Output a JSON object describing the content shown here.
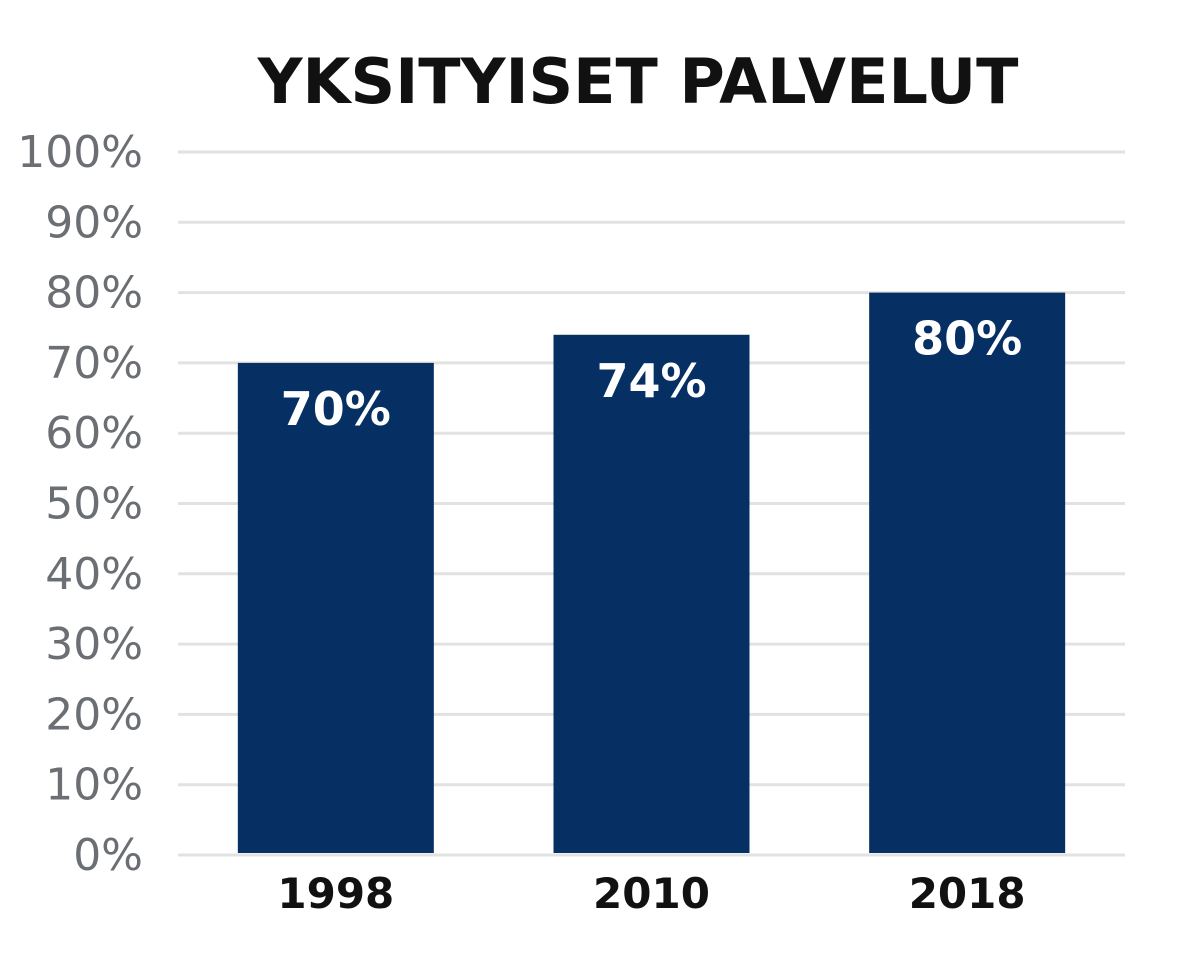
{
  "chart_data": {
    "type": "bar",
    "title": "YKSITYISET PALVELUT",
    "categories": [
      "1998",
      "2010",
      "2018"
    ],
    "values": [
      70,
      74,
      80
    ],
    "value_labels": [
      "70%",
      "74%",
      "80%"
    ],
    "ylim": [
      0,
      100
    ],
    "y_ticks": [
      "0%",
      "10%",
      "20%",
      "30%",
      "40%",
      "50%",
      "60%",
      "70%",
      "80%",
      "90%",
      "100%"
    ],
    "grid": true,
    "colors": {
      "bar": "#062f63",
      "grid": "#e2e2e2",
      "y_tick_text": "#6b6e73",
      "title_text": "#111111"
    }
  }
}
